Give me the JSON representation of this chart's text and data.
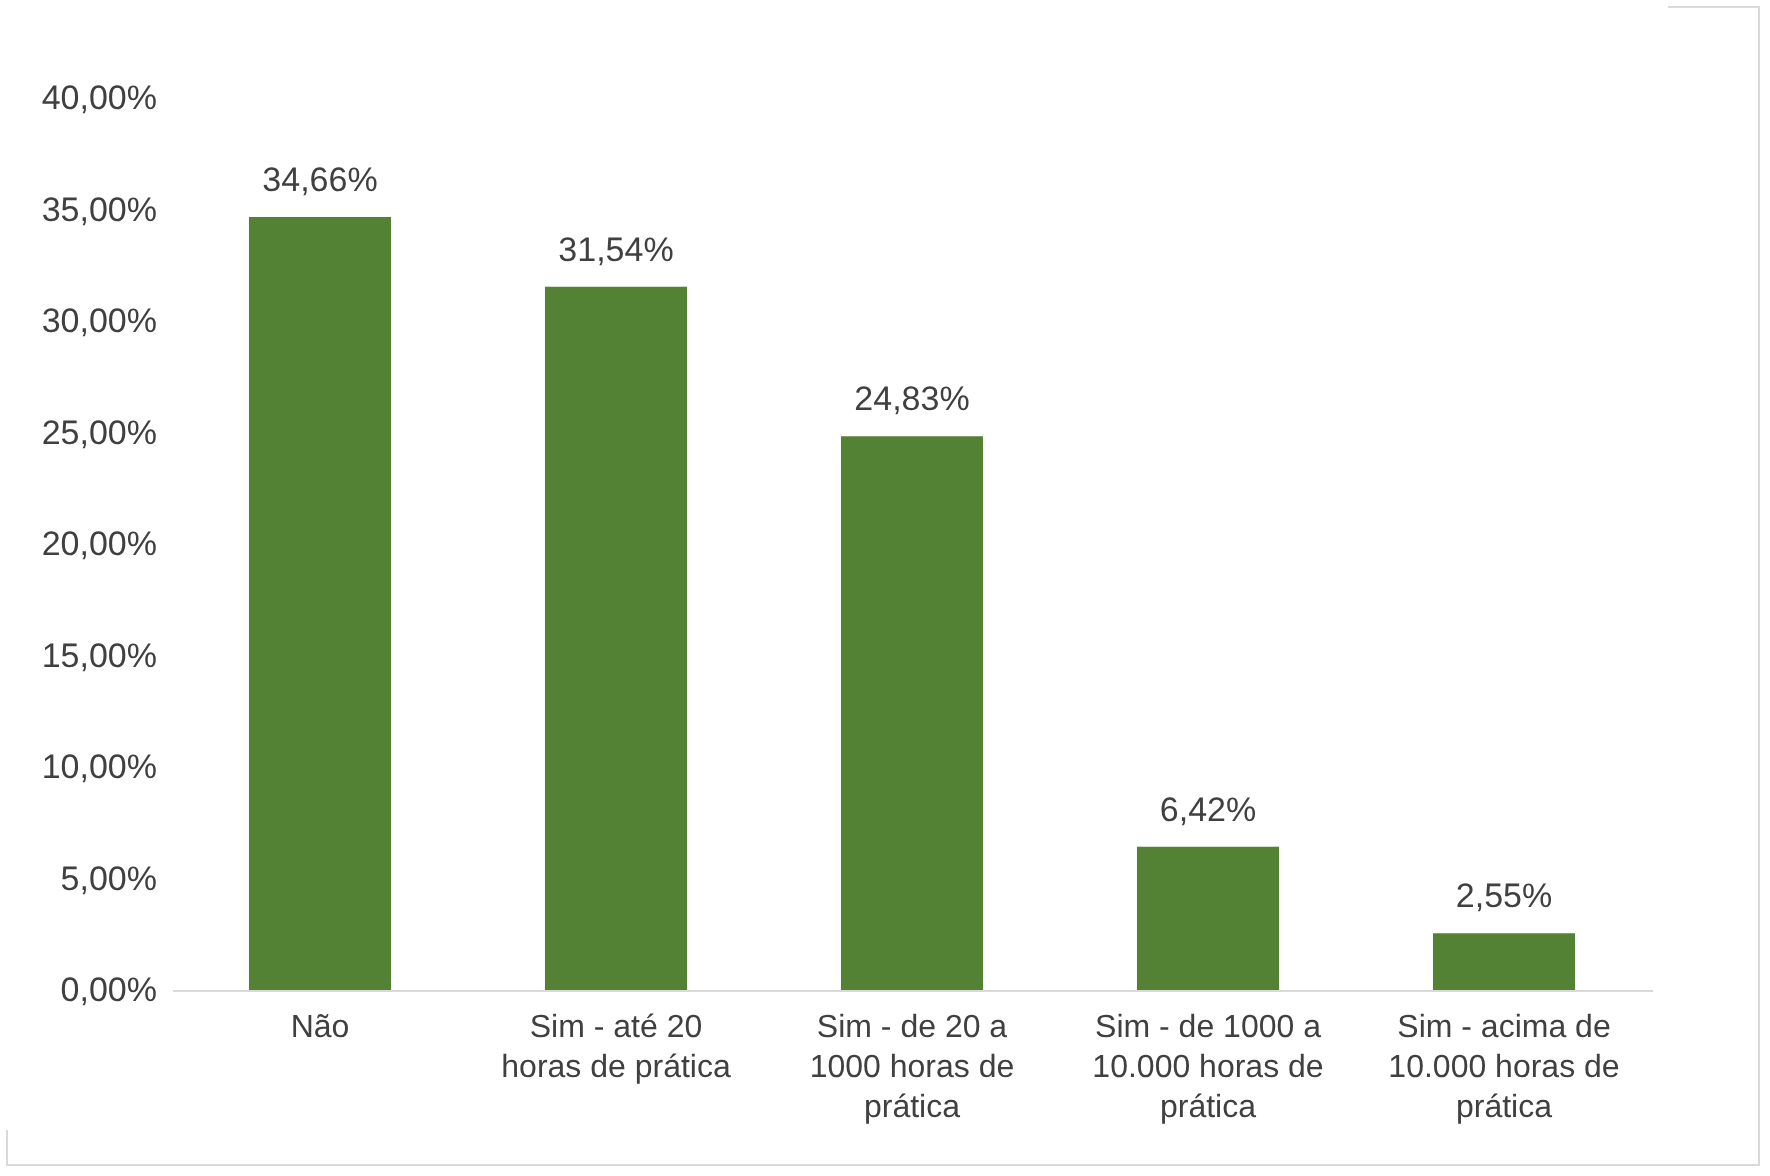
{
  "chart_data": {
    "type": "bar",
    "categories": [
      "Não",
      "Sim - até 20 horas de prática",
      "Sim - de 20 a 1000 horas de prática",
      "Sim - de 1000 a 10.000 horas de prática",
      "Sim - acima de 10.000 horas de prática"
    ],
    "values": [
      34.66,
      31.54,
      24.83,
      6.42,
      2.55
    ],
    "value_labels": [
      "34,66%",
      "31,54%",
      "24,83%",
      "6,42%",
      "2,55%"
    ],
    "color": "#548235",
    "ylim": [
      0,
      40
    ],
    "yticks": [
      {
        "value": 0,
        "label": "0,00%"
      },
      {
        "value": 5,
        "label": "5,00%"
      },
      {
        "value": 10,
        "label": "10,00%"
      },
      {
        "value": 15,
        "label": "15,00%"
      },
      {
        "value": 20,
        "label": "20,00%"
      },
      {
        "value": 25,
        "label": "25,00%"
      },
      {
        "value": 30,
        "label": "30,00%"
      },
      {
        "value": 35,
        "label": "35,00%"
      },
      {
        "value": 40,
        "label": "40,00%"
      }
    ],
    "grid": false
  }
}
